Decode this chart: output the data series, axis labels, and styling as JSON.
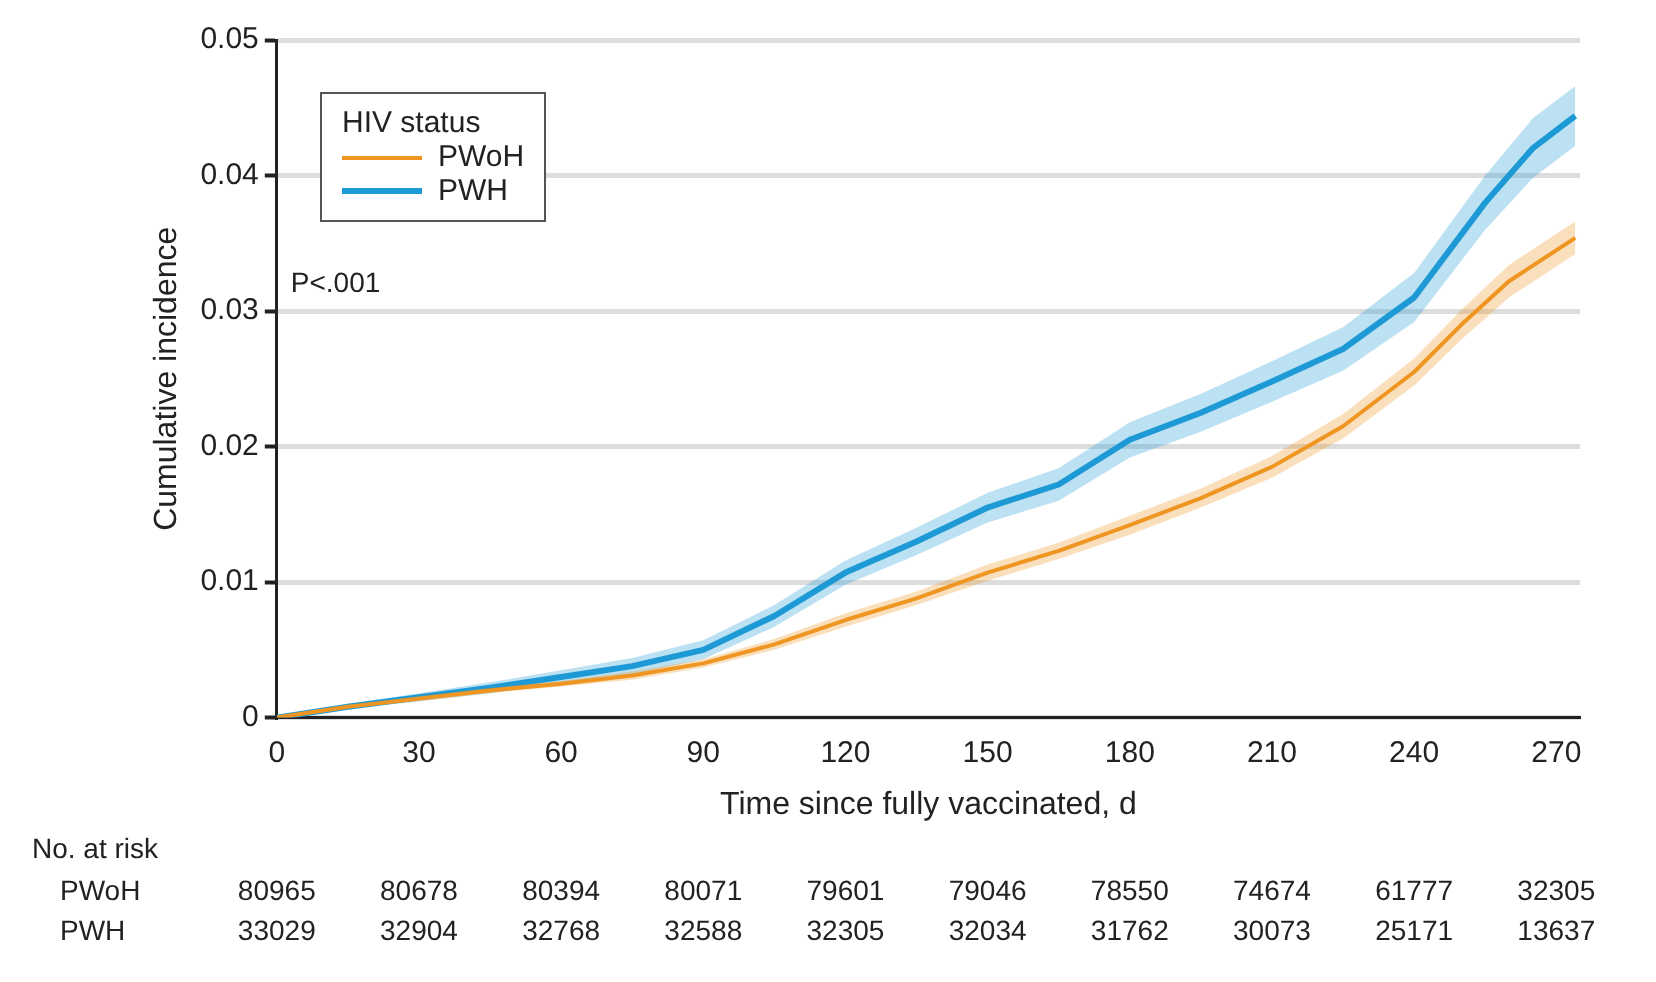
{
  "chart_data": {
    "type": "line",
    "xlabel": "Time since fully vaccinated, d",
    "ylabel": "Cumulative incidence",
    "legend_title": "HIV status",
    "legend": "top left",
    "grid": "y",
    "xlim": [
      0,
      275
    ],
    "xticks": [
      0,
      30,
      60,
      90,
      120,
      150,
      180,
      210,
      240,
      270
    ],
    "ylim": [
      0,
      0.05
    ],
    "yticks": [
      0,
      0.01,
      0.02,
      0.03,
      0.04,
      0.05
    ],
    "series": [
      {
        "name": "PWoH",
        "color": "#ef9521",
        "x": [
          0,
          15,
          30,
          45,
          60,
          75,
          90,
          105,
          120,
          135,
          150,
          165,
          180,
          195,
          210,
          225,
          240,
          250,
          260,
          274
        ],
        "values": [
          0,
          0.0008,
          0.0014,
          0.002,
          0.0025,
          0.0031,
          0.004,
          0.0054,
          0.0072,
          0.0088,
          0.0107,
          0.0123,
          0.0142,
          0.0162,
          0.0185,
          0.0215,
          0.0255,
          0.029,
          0.0322,
          0.0354
        ],
        "lower": [
          0,
          0.0007,
          0.0012,
          0.0018,
          0.0023,
          0.0028,
          0.0037,
          0.005,
          0.0067,
          0.0083,
          0.0101,
          0.0117,
          0.0135,
          0.0155,
          0.0177,
          0.0206,
          0.0245,
          0.0279,
          0.031,
          0.0342
        ],
        "upper": [
          0,
          0.0009,
          0.0016,
          0.0022,
          0.0027,
          0.0034,
          0.0043,
          0.0058,
          0.0077,
          0.0093,
          0.0113,
          0.0129,
          0.0149,
          0.0169,
          0.0193,
          0.0224,
          0.0265,
          0.0301,
          0.0334,
          0.0366
        ]
      },
      {
        "name": "PWH",
        "color": "#1e9ad6",
        "x": [
          0,
          15,
          30,
          45,
          60,
          75,
          90,
          105,
          120,
          135,
          150,
          165,
          180,
          195,
          210,
          225,
          240,
          255,
          265,
          274
        ],
        "values": [
          0,
          0.0008,
          0.0015,
          0.0022,
          0.003,
          0.0038,
          0.005,
          0.0075,
          0.0107,
          0.013,
          0.0155,
          0.0172,
          0.0205,
          0.0225,
          0.0248,
          0.0272,
          0.031,
          0.038,
          0.042,
          0.0444
        ],
        "lower": [
          0,
          0.0006,
          0.0012,
          0.0018,
          0.0025,
          0.0032,
          0.0043,
          0.0067,
          0.0098,
          0.012,
          0.0144,
          0.016,
          0.0192,
          0.0211,
          0.0233,
          0.0256,
          0.0292,
          0.036,
          0.0398,
          0.0422
        ],
        "upper": [
          0,
          0.001,
          0.0018,
          0.0026,
          0.0035,
          0.0044,
          0.0057,
          0.0083,
          0.0116,
          0.014,
          0.0166,
          0.0184,
          0.0218,
          0.0239,
          0.0263,
          0.0288,
          0.0328,
          0.04,
          0.0442,
          0.0466
        ]
      }
    ],
    "annotations": [
      "P<.001",
      "No. at risk",
      "PWoH",
      "80965",
      "80678",
      "80394",
      "80071",
      "79601",
      "79046",
      "78550",
      "74674",
      "61777",
      "32305",
      "PWH",
      "33029",
      "32904",
      "32768",
      "32588",
      "32305",
      "32034",
      "31762",
      "30073",
      "25171",
      "13637"
    ]
  }
}
